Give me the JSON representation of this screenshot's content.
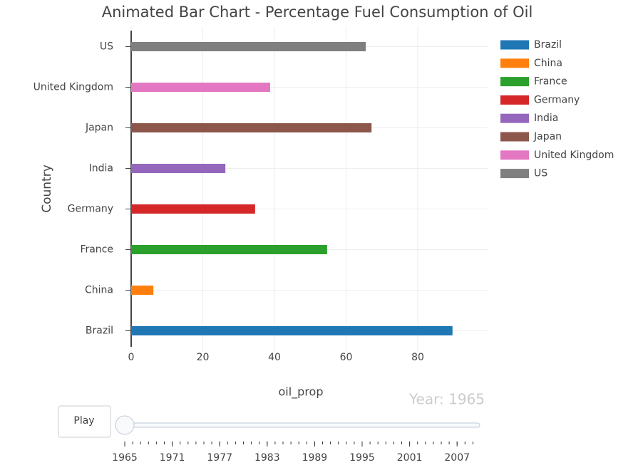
{
  "chart_data": {
    "type": "bar",
    "orientation": "horizontal",
    "title": "Animated Bar Chart - Percentage Fuel Consumption of Oil",
    "xlabel": "oil_prop",
    "ylabel": "Country",
    "categories": [
      "Brazil",
      "China",
      "France",
      "Germany",
      "India",
      "Japan",
      "United Kingdom",
      "US"
    ],
    "values": [
      89.7,
      6.2,
      54.7,
      34.6,
      26.3,
      67.1,
      38.8,
      65.5
    ],
    "colors": [
      "#1f77b4",
      "#ff7f0e",
      "#2ca02c",
      "#d62728",
      "#9467bd",
      "#8c564b",
      "#e377c2",
      "#7f7f7f"
    ],
    "xlim": [
      0,
      99.5
    ],
    "xticks": [
      0,
      20,
      40,
      60,
      80
    ],
    "grid": true,
    "legend": "right",
    "slider": {
      "button": "Play",
      "current": "Year: 1965",
      "ticks": [
        1965,
        1971,
        1977,
        1983,
        1989,
        1995,
        2001,
        2007
      ]
    }
  }
}
